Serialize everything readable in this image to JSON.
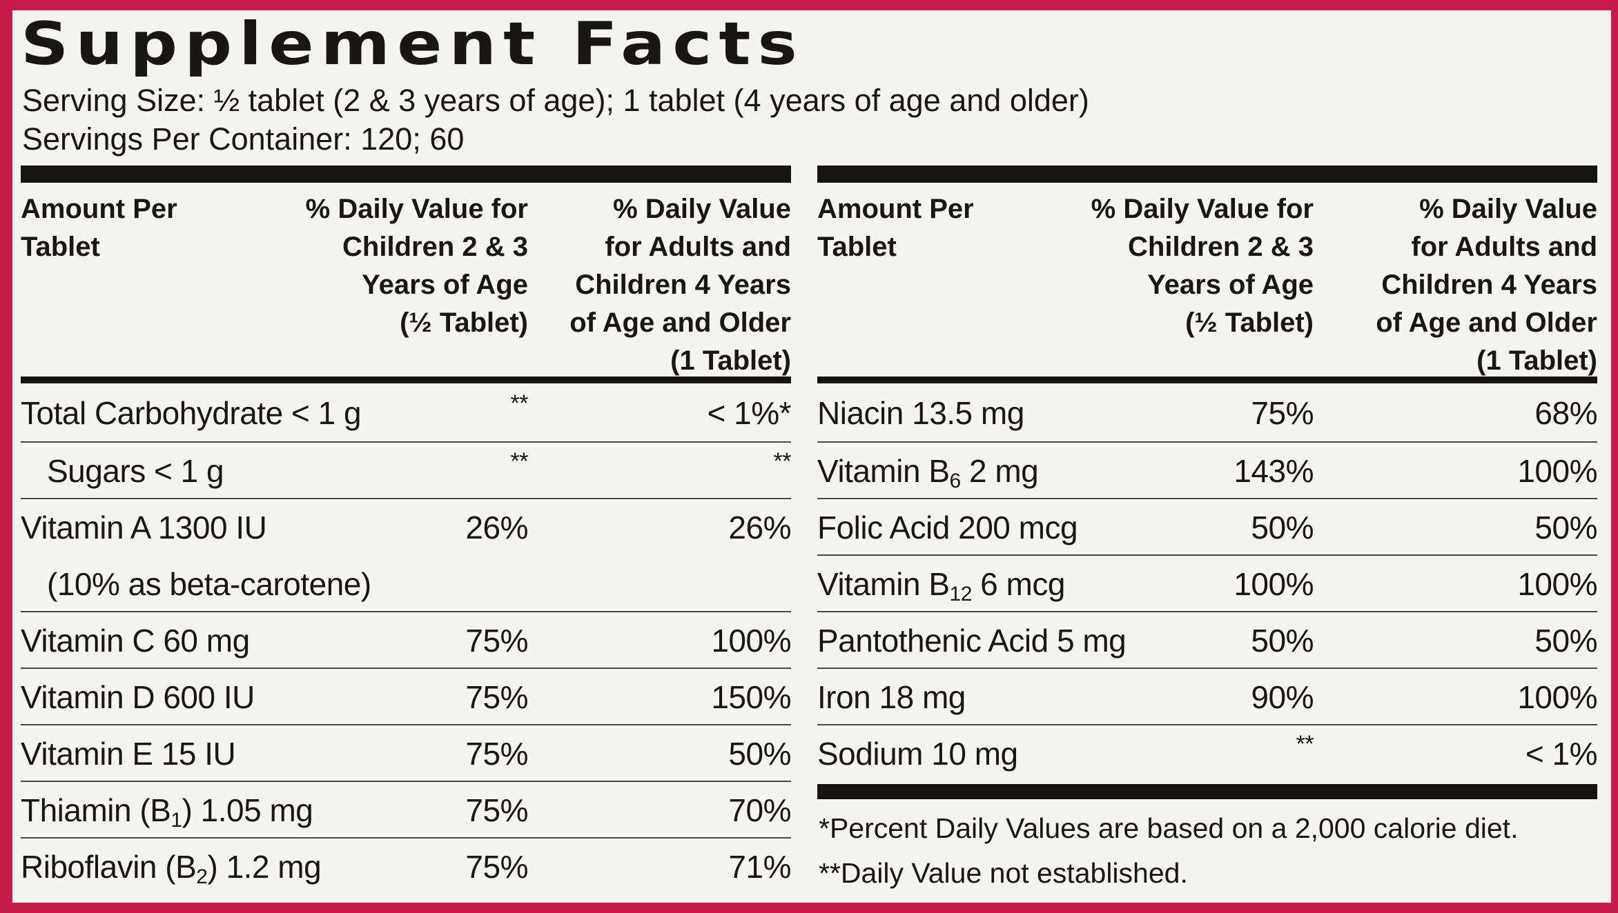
{
  "title": "Supplement Facts",
  "serving_size": "Serving Size: ½ tablet (2 & 3 years of age); 1 tablet (4 years of age and older)",
  "servings_per_container": "Servings Per Container: 120; 60",
  "headers": {
    "amount": "Amount Per\nTablet",
    "children": "% Daily Value for\nChildren 2 & 3\nYears of Age\n(½ Tablet)",
    "adults": "% Daily Value\nfor Adults and\nChildren 4 Years\nof Age and Older\n(1 Tablet)"
  },
  "left_rows": [
    {
      "name": "Total Carbohydrate < 1 g",
      "children": "**",
      "adults": "< 1%*"
    },
    {
      "name": "Sugars < 1 g",
      "indent": true,
      "children": "**",
      "adults": "**"
    },
    {
      "name": "Vitamin A 1300 IU",
      "note": "(10% as beta-carotene)",
      "children": "26%",
      "adults": "26%"
    },
    {
      "name": "Vitamin C 60 mg",
      "children": "75%",
      "adults": "100%"
    },
    {
      "name": "Vitamin D 600 IU",
      "children": "75%",
      "adults": "150%"
    },
    {
      "name": "Vitamin E 15 IU",
      "children": "75%",
      "adults": "50%"
    },
    {
      "name": "Thiamin (B",
      "sub": "1",
      "post": ") 1.05 mg",
      "children": "75%",
      "adults": "70%"
    },
    {
      "name": "Riboflavin (B",
      "sub": "2",
      "post": ") 1.2 mg",
      "children": "75%",
      "adults": "71%"
    }
  ],
  "right_rows": [
    {
      "name": "Niacin 13.5 mg",
      "children": "75%",
      "adults": "68%"
    },
    {
      "name": "Vitamin B",
      "sub": "6",
      "post": " 2 mg",
      "children": "143%",
      "adults": "100%"
    },
    {
      "name": "Folic Acid 200 mcg",
      "children": "50%",
      "adults": "50%"
    },
    {
      "name": "Vitamin B",
      "sub": "12",
      "post": " 6 mcg",
      "children": "100%",
      "adults": "100%"
    },
    {
      "name": "Pantothenic Acid 5 mg",
      "children": "50%",
      "adults": "50%"
    },
    {
      "name": "Iron 18 mg",
      "children": "90%",
      "adults": "100%"
    },
    {
      "name": "Sodium 10 mg",
      "children": "**",
      "adults": "< 1%"
    }
  ],
  "footnotes": [
    "*Percent Daily Values are based on a 2,000 calorie diet.",
    "**Daily Value not established."
  ],
  "colors": {
    "background": "#c91a4c",
    "panel": "#f4f4f2",
    "ink": "#161311"
  }
}
